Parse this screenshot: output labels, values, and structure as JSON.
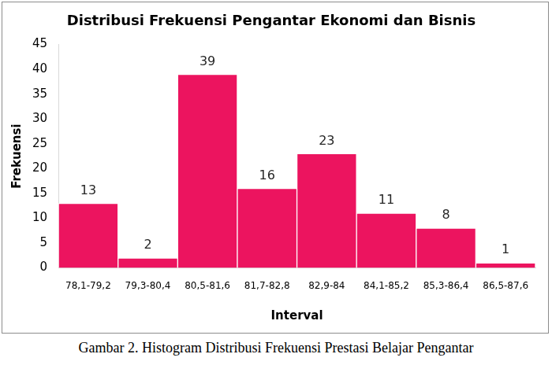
{
  "chart_data": {
    "type": "bar",
    "title": "Distribusi Frekuensi Pengantar Ekonomi dan Bisnis",
    "x_label": "Interval",
    "y_label": "Frekuensi",
    "categories": [
      "78,1-79,2",
      "79,3-80,4",
      "80,5-81,6",
      "81,7-82,8",
      "82,9-84",
      "84,1-85,2",
      "85,3-86,4",
      "86,5-87,6"
    ],
    "values": [
      13,
      2,
      39,
      16,
      23,
      11,
      8,
      1
    ],
    "color": "#ec145f",
    "ylim": [
      0,
      45
    ],
    "yticks": [
      0,
      5,
      10,
      15,
      20,
      25,
      30,
      35,
      40,
      45
    ],
    "grid": false,
    "data_labels": true,
    "caption": "Gambar 2. Histogram Distribusi Frekuensi Prestasi Belajar Pengantar"
  }
}
